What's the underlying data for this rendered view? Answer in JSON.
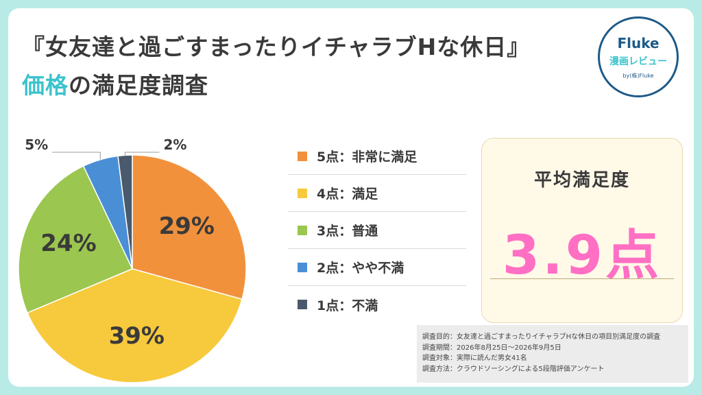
{
  "header": {
    "title_line1": "『女友達と過ごすまったりイチャラブHな休日』",
    "title_accent": "価格",
    "title_rest": "の満足度調査"
  },
  "logo": {
    "brand": "Fluke",
    "sub": "漫画レビュー",
    "by": "by(株)Fluke"
  },
  "chart_data": {
    "type": "pie",
    "title": "",
    "slices": [
      {
        "name": "5点：非常に満足",
        "value": 29,
        "label": "29%",
        "color": "#f2913c"
      },
      {
        "name": "4点：満足",
        "value": 39,
        "label": "39%",
        "color": "#f7ca3d"
      },
      {
        "name": "3点：普通",
        "value": 24,
        "label": "24%",
        "color": "#9bc64f"
      },
      {
        "name": "2点：やや不満",
        "value": 5,
        "label": "5%",
        "color": "#4a8fd6"
      },
      {
        "name": "1点：不満",
        "value": 2,
        "label": "2%",
        "color": "#4a5a6c"
      }
    ],
    "legend_position": "right"
  },
  "average": {
    "label": "平均満足度",
    "value": "3.9点"
  },
  "notes": [
    "調査目的：女友達と過ごすまったりイチャラブHな休日の項目別満足度の調査",
    "調査期間：2026年8月25日～2026年9月5日",
    "調査対象：実際に読んだ男女41名",
    "調査方法：クラウドソーシングによる5段階評価アンケート"
  ]
}
